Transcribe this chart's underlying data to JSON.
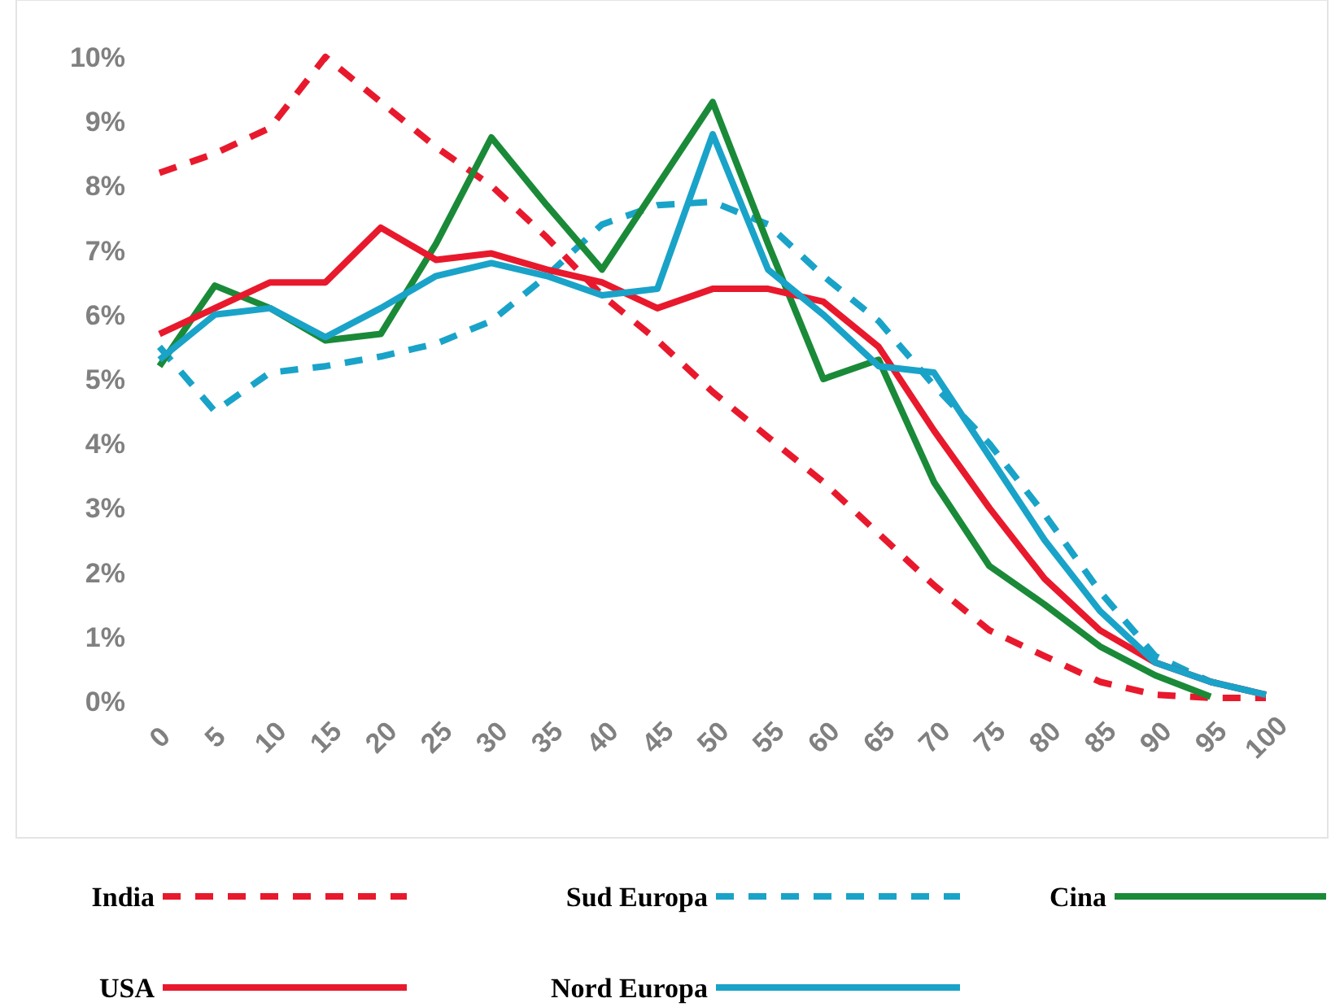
{
  "chart_data": {
    "type": "line",
    "categories": [
      "0",
      "5",
      "10",
      "15",
      "20",
      "25",
      "30",
      "35",
      "40",
      "45",
      "50",
      "55",
      "60",
      "65",
      "70",
      "75",
      "80",
      "85",
      "90",
      "95",
      "100"
    ],
    "ylim": [
      0,
      10
    ],
    "yticks": [
      {
        "value": 0,
        "label": "0%"
      },
      {
        "value": 1,
        "label": "1%"
      },
      {
        "value": 2,
        "label": "2%"
      },
      {
        "value": 3,
        "label": "3%"
      },
      {
        "value": 4,
        "label": "4%"
      },
      {
        "value": 5,
        "label": "5%"
      },
      {
        "value": 6,
        "label": "6%"
      },
      {
        "value": 7,
        "label": "7%"
      },
      {
        "value": 8,
        "label": "8%"
      },
      {
        "value": 9,
        "label": "9%"
      },
      {
        "value": 10,
        "label": "10%"
      }
    ],
    "grid": false,
    "legend": "bottom",
    "marker": "none",
    "series": [
      {
        "name": "India",
        "color": "#e8192c",
        "line_style": "dashed",
        "values": [
          8.2,
          8.5,
          8.9,
          10.0,
          9.3,
          8.6,
          8.0,
          7.2,
          6.3,
          5.6,
          4.8,
          4.1,
          3.4,
          2.6,
          1.8,
          1.1,
          0.7,
          0.3,
          0.1,
          0.05,
          0.05
        ]
      },
      {
        "name": "Sud Europa",
        "color": "#1aa3c8",
        "line_style": "dashed",
        "values": [
          5.5,
          4.5,
          5.1,
          5.2,
          5.35,
          5.55,
          5.9,
          6.6,
          7.4,
          7.7,
          7.75,
          7.4,
          6.6,
          5.9,
          4.9,
          4.0,
          2.9,
          1.7,
          0.7,
          0.3,
          0.1
        ]
      },
      {
        "name": "Cina",
        "color": "#1a8a38",
        "line_style": "solid",
        "values": [
          5.2,
          6.45,
          6.1,
          5.6,
          5.7,
          7.1,
          8.75,
          7.7,
          6.7,
          8.0,
          9.3,
          7.1,
          5.0,
          5.3,
          3.4,
          2.1,
          1.5,
          0.85,
          0.4,
          0.07,
          null
        ]
      },
      {
        "name": "USA",
        "color": "#e8192c",
        "line_style": "solid",
        "values": [
          5.7,
          6.1,
          6.5,
          6.5,
          7.35,
          6.85,
          6.95,
          6.7,
          6.5,
          6.1,
          6.4,
          6.4,
          6.2,
          5.5,
          4.2,
          3.0,
          1.9,
          1.1,
          0.6,
          0.3,
          0.1
        ]
      },
      {
        "name": "Nord Europa",
        "color": "#1aa3c8",
        "line_style": "solid",
        "values": [
          5.3,
          6.0,
          6.1,
          5.65,
          6.1,
          6.6,
          6.8,
          6.6,
          6.3,
          6.4,
          8.8,
          6.7,
          6.0,
          5.2,
          5.1,
          3.8,
          2.5,
          1.4,
          0.6,
          0.3,
          0.1
        ]
      }
    ]
  }
}
